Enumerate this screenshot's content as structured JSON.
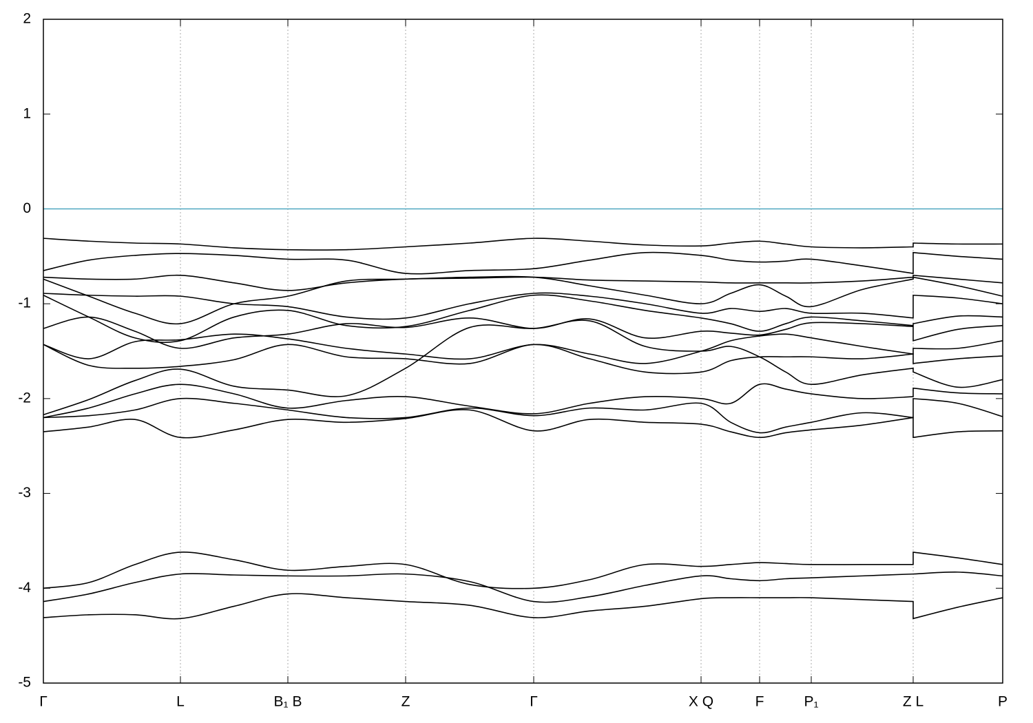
{
  "chart_data": {
    "type": "line",
    "x": [
      0,
      66,
      133,
      199,
      277,
      355,
      440,
      526,
      619,
      712,
      793,
      874,
      955,
      998,
      1040,
      1078,
      1115,
      1189,
      1263,
      1263,
      1328,
      1393
    ],
    "xlim": [
      0,
      1393
    ],
    "xticks": [
      {
        "value": 0,
        "label": "Γ"
      },
      {
        "value": 199,
        "label": "L"
      },
      {
        "value": 355,
        "label": "B₁ B"
      },
      {
        "value": 526,
        "label": "Z"
      },
      {
        "value": 712,
        "label": "Γ"
      },
      {
        "value": 955,
        "label": "X  Q"
      },
      {
        "value": 1040,
        "label": "F"
      },
      {
        "value": 1115,
        "label": "P₁"
      },
      {
        "value": 1263,
        "label": "Z  L"
      },
      {
        "value": 1393,
        "label": "P"
      }
    ],
    "ylim": [
      -5,
      2
    ],
    "yticks": [
      -5,
      -4,
      -3,
      -2,
      -1,
      0,
      1,
      2
    ],
    "grid": true,
    "reference_line": {
      "value": 0,
      "color": "#4fa8c0"
    },
    "series": [
      {
        "color": "#000000",
        "values": [
          -0.31,
          -0.34,
          -0.36,
          -0.37,
          -0.41,
          -0.43,
          -0.43,
          -0.4,
          -0.36,
          -0.31,
          -0.34,
          -0.38,
          -0.39,
          -0.36,
          -0.34,
          -0.37,
          -0.4,
          -0.41,
          -0.4,
          -0.36,
          -0.37,
          -0.37
        ]
      },
      {
        "color": "#000000",
        "values": [
          -0.65,
          -0.54,
          -0.49,
          -0.47,
          -0.49,
          -0.53,
          -0.54,
          -0.68,
          -0.65,
          -0.63,
          -0.54,
          -0.46,
          -0.49,
          -0.54,
          -0.56,
          -0.55,
          -0.53,
          -0.6,
          -0.68,
          -0.46,
          -0.5,
          -0.53
        ]
      },
      {
        "color": "#000000",
        "values": [
          -0.72,
          -0.74,
          -0.74,
          -0.7,
          -0.78,
          -0.86,
          -0.78,
          -0.74,
          -0.73,
          -0.72,
          -0.75,
          -0.76,
          -0.77,
          -0.78,
          -0.78,
          -0.78,
          -0.78,
          -0.76,
          -0.72,
          -0.7,
          -0.74,
          -0.78
        ]
      },
      {
        "color": "#000000",
        "values": [
          -0.74,
          -0.92,
          -1.1,
          -1.21,
          -1.0,
          -0.92,
          -0.76,
          -0.74,
          -0.72,
          -0.72,
          -0.81,
          -0.91,
          -1.0,
          -0.89,
          -0.8,
          -0.92,
          -1.03,
          -0.85,
          -0.74,
          -0.72,
          -0.81,
          -0.92
        ]
      },
      {
        "color": "#000000",
        "values": [
          -0.89,
          -0.91,
          -0.92,
          -0.92,
          -1.0,
          -1.03,
          -1.14,
          -1.15,
          -1.0,
          -0.89,
          -0.92,
          -1.0,
          -1.1,
          -1.05,
          -1.08,
          -1.05,
          -1.1,
          -1.1,
          -1.15,
          -0.91,
          -0.94,
          -1.0
        ]
      },
      {
        "color": "#000000",
        "values": [
          -0.91,
          -1.14,
          -1.36,
          -1.39,
          -1.14,
          -1.07,
          -1.23,
          -1.24,
          -1.07,
          -0.91,
          -0.97,
          -1.07,
          -1.15,
          -1.21,
          -1.29,
          -1.21,
          -1.14,
          -1.18,
          -1.23,
          -1.21,
          -1.13,
          -1.14
        ]
      },
      {
        "color": "#000000",
        "values": [
          -1.26,
          -1.14,
          -1.29,
          -1.47,
          -1.36,
          -1.32,
          -1.21,
          -1.25,
          -1.15,
          -1.26,
          -1.16,
          -1.36,
          -1.29,
          -1.31,
          -1.33,
          -1.27,
          -1.2,
          -1.21,
          -1.24,
          -1.39,
          -1.27,
          -1.23
        ]
      },
      {
        "color": "#000000",
        "values": [
          -1.43,
          -1.58,
          -1.4,
          -1.38,
          -1.32,
          -1.37,
          -1.47,
          -1.53,
          -1.58,
          -1.43,
          -1.53,
          -1.63,
          -1.5,
          -1.39,
          -1.34,
          -1.32,
          -1.36,
          -1.45,
          -1.53,
          -1.47,
          -1.47,
          -1.39
        ]
      },
      {
        "color": "#000000",
        "values": [
          -1.43,
          -1.65,
          -1.68,
          -1.66,
          -1.59,
          -1.43,
          -1.56,
          -1.58,
          -1.63,
          -1.43,
          -1.58,
          -1.72,
          -1.72,
          -1.6,
          -1.56,
          -1.56,
          -1.56,
          -1.58,
          -1.53,
          -1.63,
          -1.58,
          -1.55
        ]
      },
      {
        "color": "#000000",
        "values": [
          -2.17,
          -2.01,
          -1.81,
          -1.69,
          -1.87,
          -1.91,
          -1.97,
          -1.68,
          -1.25,
          -1.26,
          -1.18,
          -1.45,
          -1.5,
          -1.45,
          -1.56,
          -1.72,
          -1.85,
          -1.75,
          -1.68,
          -1.72,
          -1.88,
          -1.8
        ]
      },
      {
        "color": "#000000",
        "values": [
          -2.2,
          -2.1,
          -1.95,
          -1.85,
          -1.95,
          -2.1,
          -2.02,
          -1.98,
          -2.08,
          -2.16,
          -2.05,
          -1.98,
          -2.0,
          -2.05,
          -1.85,
          -1.9,
          -1.95,
          -2.0,
          -1.98,
          -1.89,
          -1.94,
          -1.95
        ]
      },
      {
        "color": "#000000",
        "values": [
          -2.2,
          -2.18,
          -2.12,
          -2.0,
          -2.05,
          -2.12,
          -2.2,
          -2.2,
          -2.1,
          -2.18,
          -2.1,
          -2.12,
          -2.05,
          -2.25,
          -2.36,
          -2.3,
          -2.25,
          -2.15,
          -2.2,
          -2.0,
          -2.05,
          -2.19
        ]
      },
      {
        "color": "#000000",
        "values": [
          -2.35,
          -2.3,
          -2.22,
          -2.41,
          -2.33,
          -2.22,
          -2.25,
          -2.21,
          -2.12,
          -2.34,
          -2.22,
          -2.25,
          -2.27,
          -2.35,
          -2.41,
          -2.36,
          -2.33,
          -2.28,
          -2.2,
          -2.41,
          -2.35,
          -2.34
        ]
      },
      {
        "color": "#000000",
        "values": [
          -4.31,
          -4.28,
          -4.28,
          -4.32,
          -4.19,
          -4.06,
          -4.1,
          -4.14,
          -4.18,
          -4.31,
          -4.24,
          -4.19,
          -4.11,
          -4.1,
          -4.1,
          -4.1,
          -4.1,
          -4.12,
          -4.14,
          -4.32,
          -4.2,
          -4.1
        ]
      },
      {
        "color": "#000000",
        "values": [
          -4.14,
          -4.06,
          -3.94,
          -3.85,
          -3.86,
          -3.87,
          -3.87,
          -3.85,
          -3.93,
          -4.14,
          -4.09,
          -3.97,
          -3.87,
          -3.9,
          -3.92,
          -3.9,
          -3.89,
          -3.87,
          -3.85,
          -3.85,
          -3.83,
          -3.87
        ]
      },
      {
        "color": "#000000",
        "values": [
          -4.0,
          -3.94,
          -3.75,
          -3.62,
          -3.7,
          -3.81,
          -3.77,
          -3.75,
          -3.96,
          -4.0,
          -3.91,
          -3.75,
          -3.77,
          -3.75,
          -3.73,
          -3.74,
          -3.75,
          -3.75,
          -3.75,
          -3.62,
          -3.68,
          -3.75
        ]
      }
    ]
  }
}
